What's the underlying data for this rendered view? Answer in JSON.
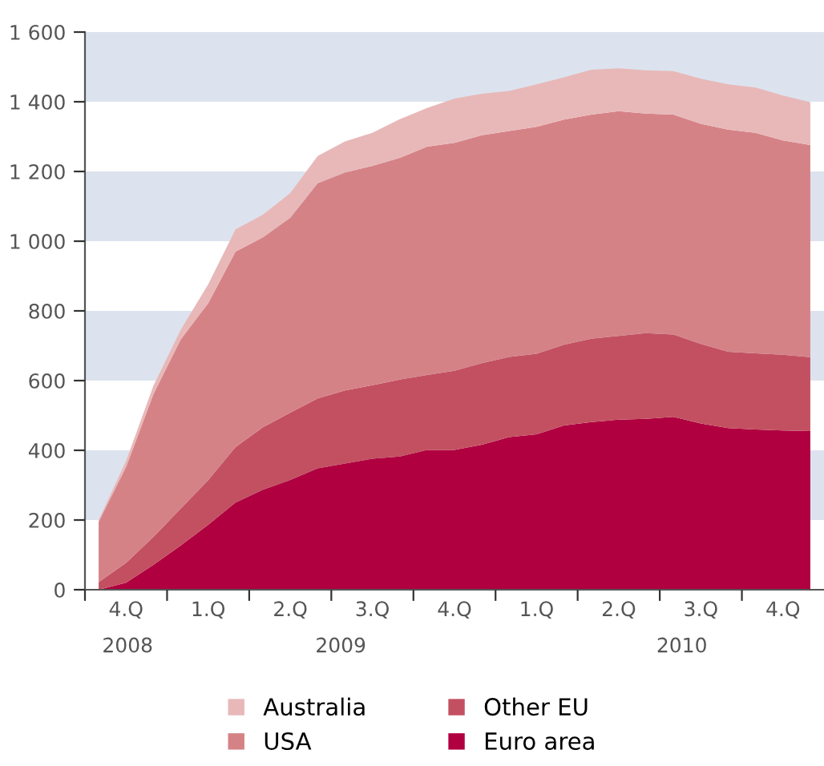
{
  "chart_data": {
    "type": "area",
    "stacked": true,
    "legend": "bottom",
    "categories": [
      null,
      "4.Q",
      null,
      null,
      "1.Q",
      null,
      null,
      "2.Q",
      null,
      null,
      "3.Q",
      null,
      null,
      "4.Q",
      null,
      null,
      "1.Q",
      null,
      null,
      "2.Q",
      null,
      null,
      "3.Q",
      null,
      null,
      "4.Q",
      null
    ],
    "ylim": [
      0,
      1600
    ],
    "yticks": [
      0,
      200,
      400,
      600,
      800,
      {
        "value": 1000,
        "label": "1 000"
      },
      {
        "value": 1200,
        "label": "1 200"
      },
      {
        "value": 1400,
        "label": "1 400"
      },
      {
        "value": 1600,
        "label": "1 600"
      }
    ],
    "bands": [
      {
        "axis": "y",
        "from": 200,
        "to": 400,
        "color": "#dce3ee"
      },
      {
        "axis": "y",
        "from": 600,
        "to": 800,
        "color": "#dce3ee"
      },
      {
        "axis": "y",
        "from": 1000,
        "to": 1200,
        "color": "#dce3ee"
      },
      {
        "axis": "y",
        "from": 1400,
        "to": 1600,
        "color": "#dce3ee"
      }
    ],
    "annotations": [
      "2008",
      "2009",
      "2010"
    ],
    "series": [
      {
        "name": "Euro area",
        "color": "#b00040",
        "values": [
          0,
          20,
          71,
          127,
          186,
          250,
          287,
          315,
          348,
          362,
          376,
          382,
          401,
          401,
          416,
          438,
          446,
          471,
          481,
          488,
          490,
          496,
          477,
          464,
          460,
          457,
          455
        ]
      },
      {
        "name": "Other EU",
        "color": "#c35060",
        "values": [
          22,
          57,
          81,
          106,
          128,
          159,
          179,
          193,
          201,
          210,
          211,
          221,
          215,
          227,
          234,
          230,
          231,
          232,
          239,
          240,
          246,
          236,
          228,
          219,
          218,
          217,
          212
        ]
      },
      {
        "name": "USA",
        "color": "#d58287",
        "values": [
          173,
          275,
          409,
          485,
          508,
          561,
          545,
          559,
          617,
          625,
          629,
          636,
          655,
          654,
          654,
          648,
          651,
          646,
          643,
          645,
          630,
          631,
          632,
          637,
          633,
          615,
          609
        ]
      },
      {
        "name": "Australia",
        "color": "#e8b8b8",
        "values": [
          5,
          17,
          24,
          28,
          54,
          64,
          65,
          71,
          78,
          89,
          95,
          111,
          111,
          127,
          119,
          115,
          122,
          121,
          129,
          123,
          124,
          125,
          129,
          130,
          130,
          129,
          123
        ]
      }
    ]
  }
}
